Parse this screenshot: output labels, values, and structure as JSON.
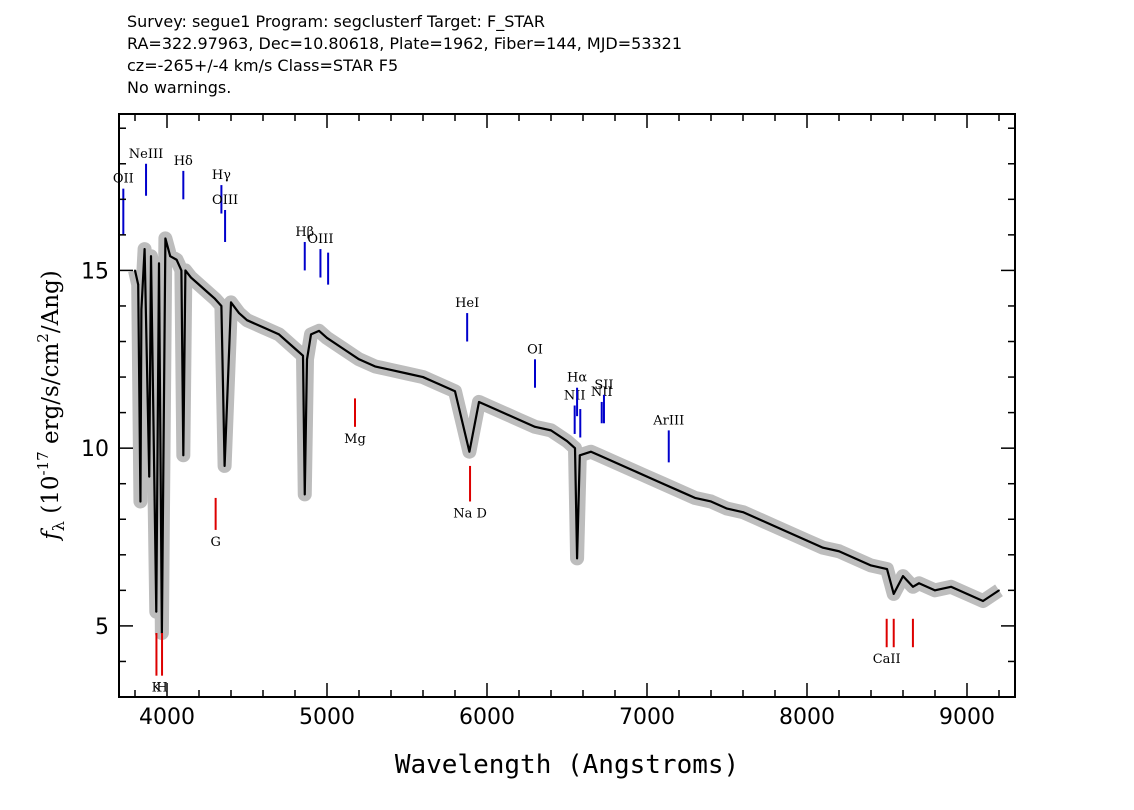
{
  "header": {
    "line1": "Survey: segue1 Program: segclusterf Target: F_STAR",
    "line2": "RA=322.97963, Dec=10.80618, Plate=1962, Fiber=144, MJD=53321",
    "line3": "cz=-265+/-4 km/s Class=STAR F5",
    "line4": "No warnings."
  },
  "colors": {
    "spectrum": "#000000",
    "error_band": "#bdbdbd",
    "emission_lines": "#0000cc",
    "absorption_lines": "#dd0000"
  },
  "chart_data": {
    "type": "line",
    "xlabel": "Wavelength (Angstroms)",
    "ylabel": "f_λ (10^-17 erg/s/cm^2/Ang)",
    "xlim": [
      3700,
      9300
    ],
    "ylim": [
      3,
      19.4
    ],
    "x_ticks": [
      4000,
      5000,
      6000,
      7000,
      8000,
      9000
    ],
    "y_ticks": [
      5,
      10,
      15
    ],
    "x_tick_labels": [
      "4000",
      "5000",
      "6000",
      "7000",
      "8000",
      "9000"
    ],
    "y_tick_labels": [
      "5",
      "10",
      "15"
    ],
    "series": [
      {
        "x": [
          3800,
          3820,
          3834,
          3840,
          3860,
          3889,
          3900,
          3933,
          3950,
          3968,
          3990,
          4020,
          4060,
          4090,
          4102,
          4115,
          4150,
          4200,
          4250,
          4300,
          4340,
          4360,
          4400,
          4450,
          4500,
          4600,
          4700,
          4800,
          4850,
          4861,
          4875,
          4900,
          4950,
          5000,
          5100,
          5200,
          5300,
          5400,
          5500,
          5600,
          5700,
          5800,
          5890,
          5950,
          6000,
          6100,
          6200,
          6300,
          6400,
          6500,
          6550,
          6563,
          6580,
          6650,
          6700,
          6800,
          6900,
          7000,
          7100,
          7200,
          7300,
          7400,
          7500,
          7600,
          7700,
          7800,
          7900,
          8000,
          8100,
          8200,
          8300,
          8400,
          8500,
          8542,
          8600,
          8662,
          8700,
          8800,
          8900,
          9000,
          9100,
          9200
        ],
        "y": [
          15.0,
          14.6,
          8.5,
          13.9,
          15.6,
          9.2,
          15.4,
          5.4,
          15.2,
          4.8,
          15.9,
          15.4,
          15.3,
          15.0,
          9.8,
          15.0,
          14.8,
          14.6,
          14.4,
          14.2,
          14.0,
          9.5,
          14.1,
          13.8,
          13.6,
          13.4,
          13.2,
          12.8,
          12.6,
          8.7,
          12.5,
          13.2,
          13.3,
          13.1,
          12.8,
          12.5,
          12.3,
          12.2,
          12.1,
          12.0,
          11.8,
          11.6,
          9.9,
          11.3,
          11.2,
          11.0,
          10.8,
          10.6,
          10.5,
          10.2,
          10.0,
          6.9,
          9.8,
          9.9,
          9.8,
          9.6,
          9.4,
          9.2,
          9.0,
          8.8,
          8.6,
          8.5,
          8.3,
          8.2,
          8.0,
          7.8,
          7.6,
          7.4,
          7.2,
          7.1,
          6.9,
          6.7,
          6.6,
          5.9,
          6.4,
          6.1,
          6.2,
          6.0,
          6.1,
          5.9,
          5.7,
          6.0
        ]
      }
    ],
    "emission_labels": [
      {
        "label": "OII",
        "x": 3727,
        "y_top": 17.3,
        "y_bottom": 16.0
      },
      {
        "label": "NeIII",
        "x": 3869,
        "y_top": 18.0,
        "y_bottom": 17.1
      },
      {
        "label": "Hδ",
        "x": 4102,
        "y_top": 17.8,
        "y_bottom": 17.0
      },
      {
        "label": "Hγ",
        "x": 4340,
        "y_top": 17.4,
        "y_bottom": 16.6
      },
      {
        "label": "OIII",
        "x": 4363,
        "y_top": 16.7,
        "y_bottom": 15.8
      },
      {
        "label": "Hβ",
        "x": 4861,
        "y_top": 15.8,
        "y_bottom": 15.0
      },
      {
        "label": "OIII",
        "x": 4959,
        "y_top": 15.6,
        "y_bottom": 14.8
      },
      {
        "label": "",
        "x": 5007,
        "y_top": 15.5,
        "y_bottom": 14.6
      },
      {
        "label": "HeI",
        "x": 5876,
        "y_top": 13.8,
        "y_bottom": 13.0
      },
      {
        "label": "OI",
        "x": 6300,
        "y_top": 12.5,
        "y_bottom": 11.7
      },
      {
        "label": "NII",
        "x": 6548,
        "y_top": 11.2,
        "y_bottom": 10.4
      },
      {
        "label": "Hα",
        "x": 6563,
        "y_top": 11.7,
        "y_bottom": 10.9
      },
      {
        "label": "",
        "x": 6583,
        "y_top": 11.1,
        "y_bottom": 10.3
      },
      {
        "label": "NII",
        "x": 6717,
        "y_top": 11.3,
        "y_bottom": 10.7
      },
      {
        "label": "SII",
        "x": 6731,
        "y_top": 11.5,
        "y_bottom": 10.7
      },
      {
        "label": "ArIII",
        "x": 7136,
        "y_top": 10.5,
        "y_bottom": 9.6
      }
    ],
    "absorption_labels": [
      {
        "label": "K",
        "x": 3934,
        "y_top": 4.8,
        "y_bottom": 3.6
      },
      {
        "label": "H",
        "x": 3969,
        "y_top": 4.8,
        "y_bottom": 3.6
      },
      {
        "label": "G",
        "x": 4304,
        "y_top": 8.6,
        "y_bottom": 7.7
      },
      {
        "label": "Mg",
        "x": 5175,
        "y_top": 11.4,
        "y_bottom": 10.6
      },
      {
        "label": "Na D",
        "x": 5894,
        "y_top": 9.5,
        "y_bottom": 8.5
      },
      {
        "label": "CaII",
        "x": 8498,
        "y_top": 5.2,
        "y_bottom": 4.4
      },
      {
        "label": "",
        "x": 8542,
        "y_top": 5.2,
        "y_bottom": 4.4
      },
      {
        "label": "",
        "x": 8662,
        "y_top": 5.2,
        "y_bottom": 4.4
      }
    ]
  }
}
